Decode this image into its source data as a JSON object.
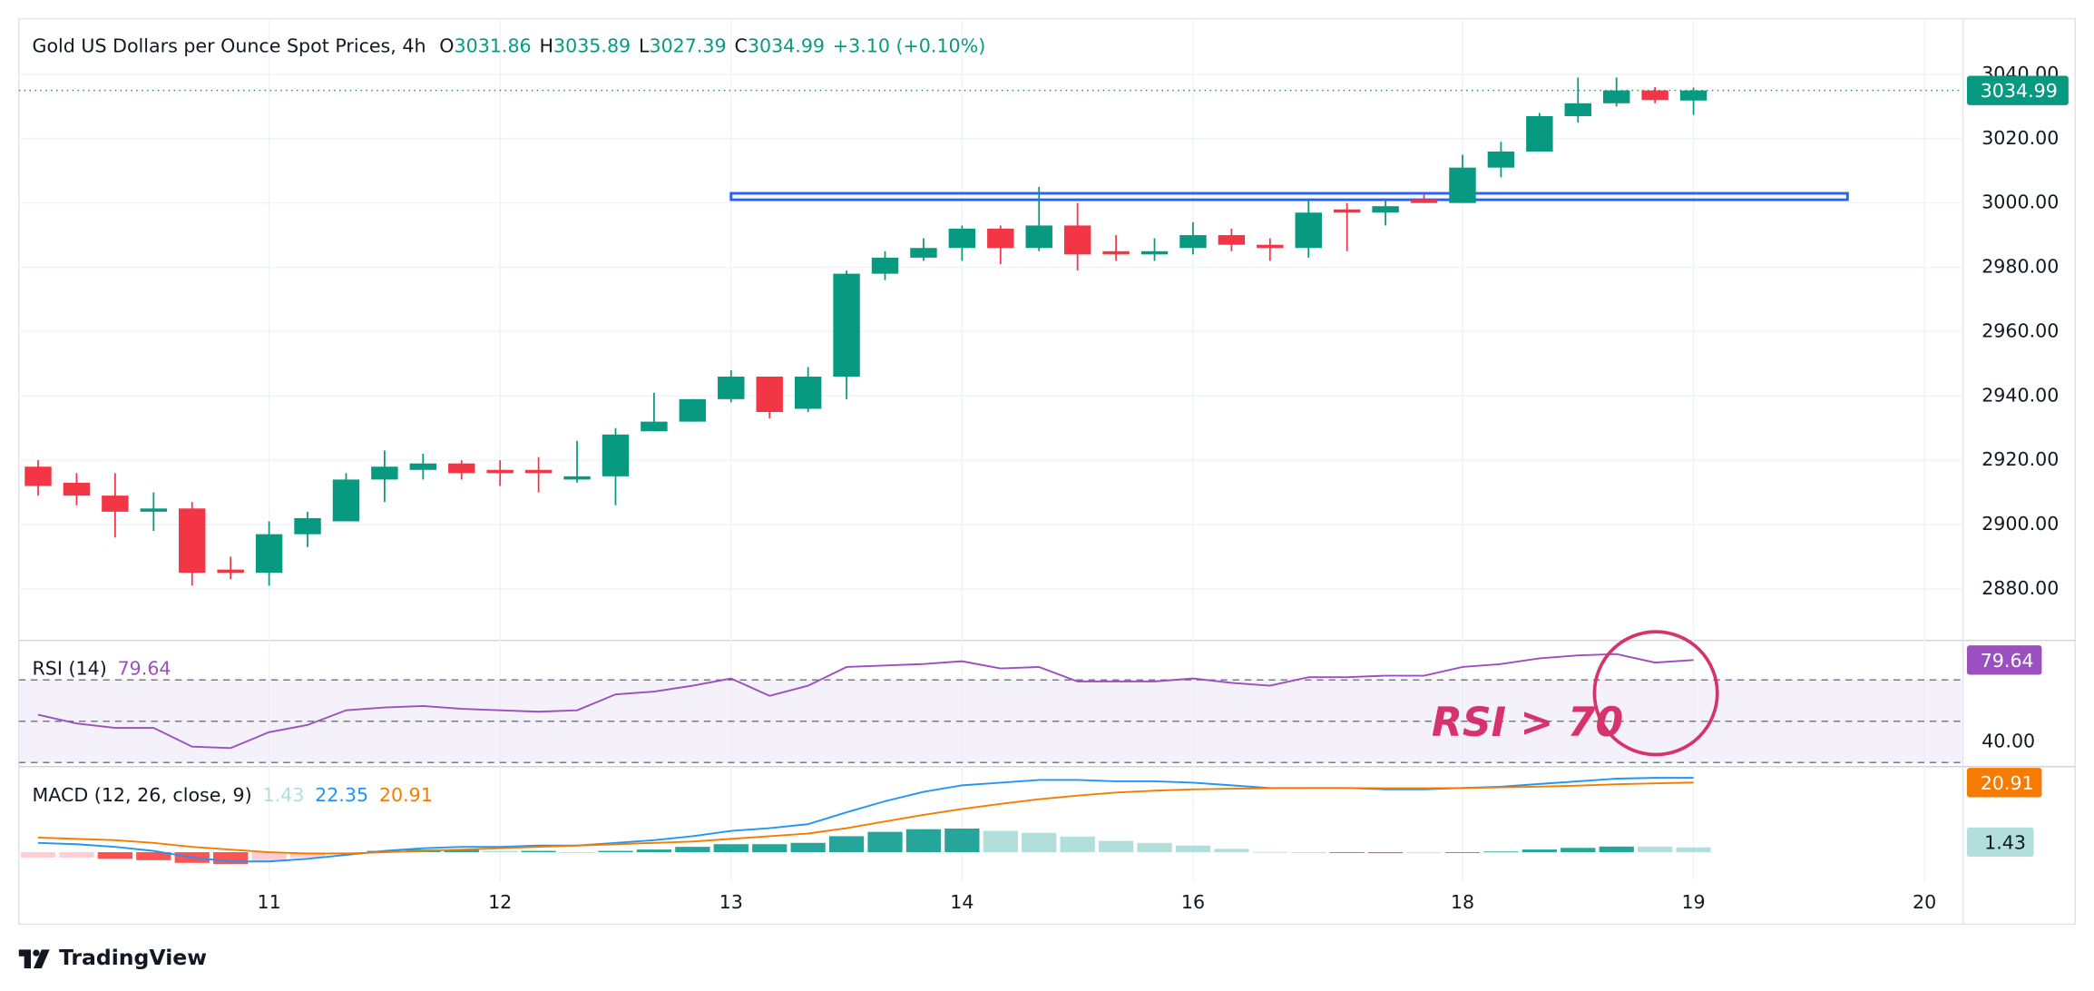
{
  "chart_data": [
    {
      "type": "candlestick",
      "title": "Gold US Dollars per Ounce Spot Prices, 4h",
      "ohlc_letters": [
        "O",
        "H",
        "L",
        "C"
      ],
      "change": "+3.10 (+0.10%)",
      "open": [
        2918,
        2913,
        2909,
        2904,
        2905,
        2886,
        2885,
        2897,
        2901,
        2914,
        2917,
        2919,
        2917,
        2917,
        2914,
        2915,
        2929,
        2932,
        2939,
        2946,
        2936,
        2946,
        2978,
        2983,
        2986,
        2992,
        2986,
        2993,
        2985,
        2984,
        2986,
        2990,
        2987,
        2986,
        2998,
        2997,
        3001,
        3000,
        3011,
        3016,
        3027,
        3031,
        3035,
        3031.86
      ],
      "high": [
        2920,
        2916,
        2916,
        2910,
        2907,
        2890,
        2901,
        2904,
        2916,
        2923,
        2922,
        2920,
        2920,
        2921,
        2926,
        2930,
        2941,
        2939,
        2948,
        2946,
        2949,
        2979,
        2985,
        2989,
        2993,
        2993,
        3005,
        3000,
        2990,
        2989,
        2994,
        2992,
        2989,
        3001,
        3000,
        3001,
        3003,
        3015,
        3019,
        3028,
        3039,
        3039,
        3036,
        3035.89
      ],
      "low": [
        2909,
        2906,
        2896,
        2898,
        2881,
        2883,
        2881,
        2893,
        2901,
        2907,
        2914,
        2914,
        2912,
        2910,
        2913,
        2906,
        2929,
        2932,
        2938,
        2933,
        2935,
        2939,
        2976,
        2982,
        2982,
        2981,
        2985,
        2979,
        2982,
        2982,
        2984,
        2985,
        2982,
        2983,
        2985,
        2993,
        3000,
        3000,
        3008,
        3016,
        3025,
        3030,
        3031,
        3027.39
      ],
      "close": [
        2912,
        2909,
        2904,
        2905,
        2885,
        2885,
        2897,
        2902,
        2914,
        2918,
        2919,
        2916,
        2916,
        2916,
        2915,
        2928,
        2932,
        2939,
        2946,
        2935,
        2946,
        2978,
        2983,
        2986,
        2992,
        2986,
        2993,
        2984,
        2984,
        2985,
        2990,
        2987,
        2986,
        2997,
        2997,
        2999,
        3000,
        3011,
        3016,
        3027,
        3031,
        3035,
        3032,
        3034.99
      ],
      "up_color": "#089981",
      "down_color": "#f23645",
      "xlim": [
        -0.5,
        50
      ],
      "xticks": [
        {
          "value": 6,
          "label": "11"
        },
        {
          "value": 12,
          "label": "12"
        },
        {
          "value": 18,
          "label": "13"
        },
        {
          "value": 24,
          "label": "14"
        },
        {
          "value": 30,
          "label": "16"
        },
        {
          "value": 37,
          "label": "18"
        },
        {
          "value": 43,
          "label": "19"
        },
        {
          "value": 49,
          "label": "20"
        }
      ],
      "ylim": [
        2864.6,
        3057.3
      ],
      "yticks": [
        {
          "value": 2880,
          "label": "2880.00"
        },
        {
          "value": 2900,
          "label": "2900.00"
        },
        {
          "value": 2920,
          "label": "2920.00"
        },
        {
          "value": 2940,
          "label": "2940.00"
        },
        {
          "value": 2960,
          "label": "2960.00"
        },
        {
          "value": 2980,
          "label": "2980.00"
        },
        {
          "value": 3000,
          "label": "3000.00"
        },
        {
          "value": 3020,
          "label": "3020.00"
        },
        {
          "value": 3040,
          "label": "3040.00"
        }
      ],
      "grid": true,
      "resistance_zone": {
        "y": [
          3001,
          3003
        ],
        "x": [
          18,
          47
        ],
        "color": "#2962ff"
      }
    },
    {
      "type": "line",
      "title": "RSI (14)",
      "values": [
        53.2,
        48.9,
        46.8,
        46.8,
        37.7,
        37.0,
        44.7,
        48.2,
        55.3,
        56.7,
        57.4,
        56.0,
        55.3,
        54.6,
        55.3,
        63.0,
        64.4,
        67.2,
        70.7,
        62.3,
        67.2,
        76.3,
        77.0,
        77.7,
        79.1,
        75.6,
        76.3,
        69.3,
        69.3,
        69.3,
        70.7,
        68.6,
        67.2,
        71.4,
        71.4,
        72.1,
        72.1,
        76.3,
        77.7,
        80.5,
        81.9,
        82.6,
        78.4,
        79.64
      ],
      "color": "#9c4fc0",
      "levels": [
        30,
        50,
        70
      ],
      "band_color": "#ede7f6",
      "ylim": [
        29.3,
        88.2
      ],
      "yticks": [
        {
          "value": 40,
          "label": "40.00"
        }
      ],
      "annotation": "RSI > 70",
      "annotation_color": "#d6336c"
    },
    {
      "type": "macd",
      "title": "MACD (12, 26, close, 9)",
      "histogram": {
        "values": [
          -1.6,
          -1.6,
          -2.0,
          -2.4,
          -3.2,
          -3.6,
          -2.8,
          -1.6,
          -0.4,
          0.4,
          0.8,
          0.8,
          0.4,
          0.4,
          0,
          0.4,
          0.8,
          1.6,
          2.4,
          2.4,
          2.8,
          4.8,
          6.1,
          6.9,
          7.1,
          6.4,
          5.8,
          4.7,
          3.4,
          2.8,
          2.0,
          1.0,
          0.1,
          0,
          0,
          -0.3,
          -0.3,
          0,
          0.2,
          0.8,
          1.3,
          1.7,
          1.65,
          1.43
        ],
        "colors": [
          "#26a69a",
          "#b2dfdb",
          "#ff5252",
          "#ffcdd2"
        ]
      },
      "macd": {
        "values": [
          2.8,
          2.4,
          1.6,
          0.4,
          -1.6,
          -2.8,
          -2.8,
          -2.0,
          -0.8,
          0.4,
          1.2,
          1.6,
          1.6,
          2.0,
          2.0,
          2.8,
          3.6,
          4.8,
          6.4,
          7.2,
          8.4,
          12.0,
          15.3,
          18.1,
          20.1,
          20.9,
          21.7,
          21.7,
          21.3,
          21.3,
          20.9,
          20.1,
          19.3,
          19.3,
          19.3,
          18.9,
          18.9,
          19.3,
          19.7,
          20.5,
          21.3,
          22.1,
          22.35,
          22.35
        ],
        "color": "#2196f3"
      },
      "signal": {
        "values": [
          4.4,
          4.0,
          3.6,
          2.8,
          1.6,
          0.8,
          0,
          -0.4,
          -0.4,
          0,
          0.4,
          0.8,
          1.2,
          1.6,
          2.0,
          2.4,
          2.8,
          3.2,
          4.0,
          4.8,
          5.6,
          7.2,
          9.2,
          11.2,
          13.0,
          14.5,
          15.9,
          17.0,
          17.9,
          18.5,
          18.9,
          19.1,
          19.2,
          19.3,
          19.3,
          19.2,
          19.2,
          19.3,
          19.5,
          19.7,
          20.0,
          20.4,
          20.7,
          20.91
        ],
        "color": "#f57c00"
      },
      "ylim": [
        -8.8,
        25.3
      ]
    }
  ],
  "footer": {
    "brand": "TradingView"
  }
}
